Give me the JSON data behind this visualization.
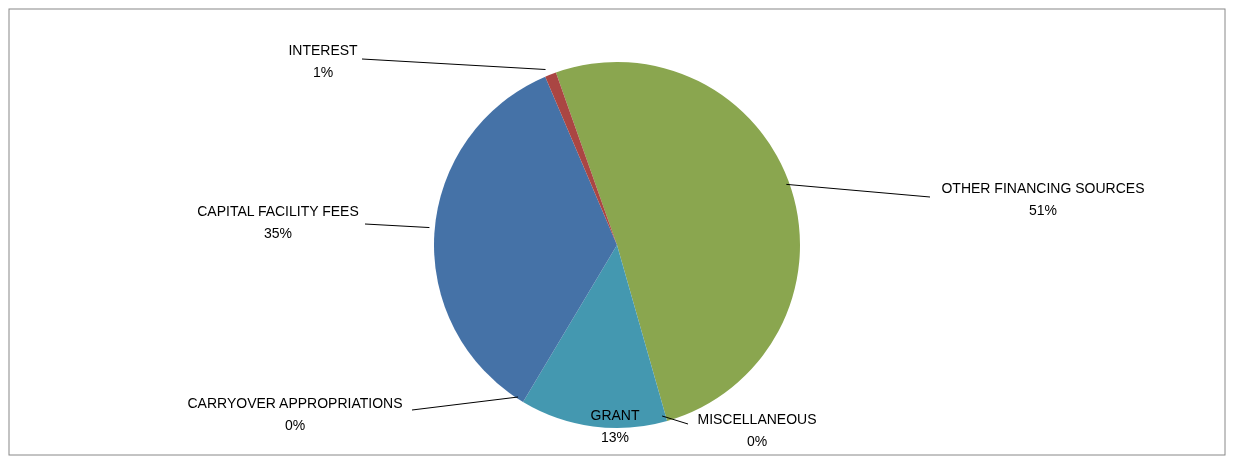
{
  "chart_data": {
    "type": "pie",
    "categories": [
      "OTHER FINANCING SOURCES",
      "MISCELLANEOUS",
      "GRANT",
      "CARRYOVER APPROPRIATIONS",
      "CAPITAL FACILITY FEES",
      "INTEREST"
    ],
    "values": [
      51,
      0,
      13,
      0,
      35,
      1
    ],
    "colors": [
      "#8aa64f",
      "#8064a2",
      "#4498b0",
      "#f79646",
      "#4572a7",
      "#aa4643"
    ],
    "value_labels": [
      "51%",
      "0%",
      "13%",
      "0%",
      "35%",
      "1%"
    ]
  }
}
